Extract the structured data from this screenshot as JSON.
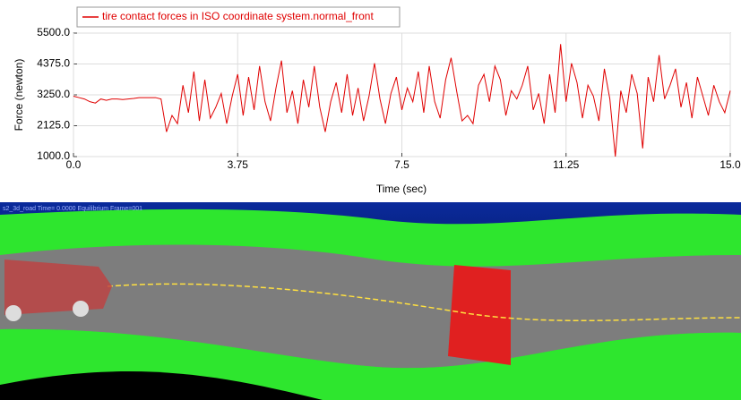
{
  "chart_data": {
    "type": "line",
    "xlabel": "Time (sec)",
    "ylabel": "Force (newton)",
    "x": [
      0,
      0.125,
      0.25,
      0.375,
      0.5,
      0.625,
      0.75,
      0.875,
      1,
      1.125,
      1.25,
      1.375,
      1.5,
      1.625,
      1.75,
      1.875,
      2,
      2.125,
      2.25,
      2.375,
      2.5,
      2.625,
      2.75,
      2.875,
      3,
      3.125,
      3.25,
      3.375,
      3.5,
      3.625,
      3.75,
      3.875,
      4,
      4.125,
      4.25,
      4.375,
      4.5,
      4.625,
      4.75,
      4.875,
      5,
      5.125,
      5.25,
      5.375,
      5.5,
      5.625,
      5.75,
      5.875,
      6,
      6.125,
      6.25,
      6.375,
      6.5,
      6.625,
      6.75,
      6.875,
      7,
      7.125,
      7.25,
      7.375,
      7.5,
      7.625,
      7.75,
      7.875,
      8,
      8.125,
      8.25,
      8.375,
      8.5,
      8.625,
      8.75,
      8.875,
      9,
      9.125,
      9.25,
      9.375,
      9.5,
      9.625,
      9.75,
      9.875,
      10,
      10.125,
      10.25,
      10.375,
      10.5,
      10.625,
      10.75,
      10.875,
      11,
      11.125,
      11.25,
      11.375,
      11.5,
      11.625,
      11.75,
      11.875,
      12,
      12.125,
      12.25,
      12.375,
      12.5,
      12.625,
      12.75,
      12.875,
      13,
      13.125,
      13.25,
      13.375,
      13.5,
      13.625,
      13.75,
      13.875,
      14,
      14.125,
      14.25,
      14.375,
      14.5,
      14.625,
      14.75,
      14.875,
      15
    ],
    "series": [
      {
        "name": "tire contact forces in ISO coordinate system.normal_front",
        "color": "#e00000",
        "values": [
          3200,
          3150,
          3100,
          3000,
          2950,
          3100,
          3050,
          3100,
          3100,
          3080,
          3100,
          3120,
          3150,
          3150,
          3150,
          3150,
          3100,
          1900,
          2500,
          2200,
          3600,
          2600,
          4100,
          2300,
          3800,
          2400,
          2800,
          3300,
          2200,
          3200,
          4000,
          2500,
          3900,
          2700,
          4300,
          3000,
          2300,
          3500,
          4500,
          2600,
          3400,
          2200,
          3800,
          2800,
          4300,
          2800,
          1900,
          3000,
          3700,
          2600,
          4000,
          2500,
          3500,
          2300,
          3200,
          4400,
          3100,
          2200,
          3300,
          3900,
          2700,
          3500,
          3000,
          4100,
          2600,
          4300,
          3000,
          2400,
          3800,
          4600,
          3400,
          2300,
          2500,
          2200,
          3600,
          4000,
          3000,
          4300,
          3800,
          2500,
          3400,
          3100,
          3600,
          4300,
          2700,
          3300,
          2200,
          4000,
          2600,
          5100,
          3000,
          4400,
          3700,
          2400,
          3600,
          3200,
          2300,
          4200,
          3100,
          1000,
          3400,
          2600,
          4000,
          3300,
          1300,
          3900,
          3000,
          4700,
          3100,
          3600,
          4200,
          2800,
          3700,
          2400,
          3900,
          3200,
          2500,
          3600,
          3000,
          2600,
          3400
        ]
      }
    ],
    "xlim": [
      0,
      15
    ],
    "ylim": [
      1000,
      5500
    ],
    "xticks": [
      {
        "value": 0,
        "label": "0.0"
      },
      3.75,
      7.5,
      11.25,
      {
        "value": 15,
        "label": "15.0"
      }
    ],
    "yticks": [
      {
        "value": 1000,
        "label": "1000.0"
      },
      {
        "value": 2125,
        "label": "2125.0"
      },
      {
        "value": 3250,
        "label": "3250.0"
      },
      {
        "value": 4375,
        "label": "4375.0"
      },
      {
        "value": 5500,
        "label": "5500.0"
      }
    ],
    "grid": true
  },
  "viewport": {
    "caption": "s2_3d_road  Time= 0.0000  Equilibrium  Frame=001"
  }
}
